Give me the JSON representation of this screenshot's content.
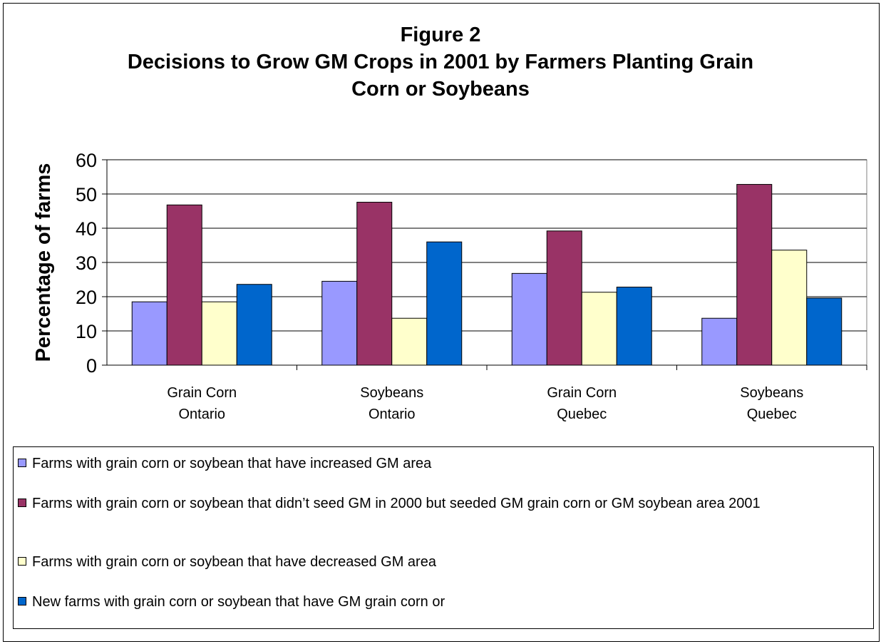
{
  "chart_data": {
    "type": "bar",
    "title_lines": [
      "Figure 2",
      "Decisions to Grow GM Crops in 2001 by Farmers Planting Grain",
      "Corn or Soybeans"
    ],
    "xlabel": "",
    "ylabel": "Percentage of farms",
    "ylim": [
      0,
      60
    ],
    "yticks": [
      "0",
      "10",
      "20",
      "30",
      "40",
      "50",
      "60"
    ],
    "grid": true,
    "legend_position": "bottom",
    "categories": [
      [
        "Grain Corn",
        "Ontario"
      ],
      [
        "Soybeans",
        "Ontario"
      ],
      [
        "Grain Corn",
        "Quebec"
      ],
      [
        "Soybeans",
        "Quebec"
      ]
    ],
    "series": [
      {
        "name": "Farms with grain corn or soybean that have increased GM  area",
        "color": "#9999ff",
        "values": [
          18.5,
          24.5,
          26.8,
          13.7
        ]
      },
      {
        "name": "Farms with grain corn or soybean that didn’t seed GM in 2000 but seeded GM grain corn or GM soybean area 2001",
        "color": "#993366",
        "values": [
          46.8,
          47.6,
          39.2,
          52.8
        ]
      },
      {
        "name": "Farms with grain corn or soybean that have decreased GM area",
        "color": "#ffffcc",
        "values": [
          18.5,
          13.7,
          21.3,
          33.6
        ]
      },
      {
        "name": "New farms with grain corn or soybean that have GM grain corn or",
        "color": "#0066cc",
        "values": [
          23.6,
          36.0,
          22.8,
          19.6
        ]
      }
    ]
  }
}
